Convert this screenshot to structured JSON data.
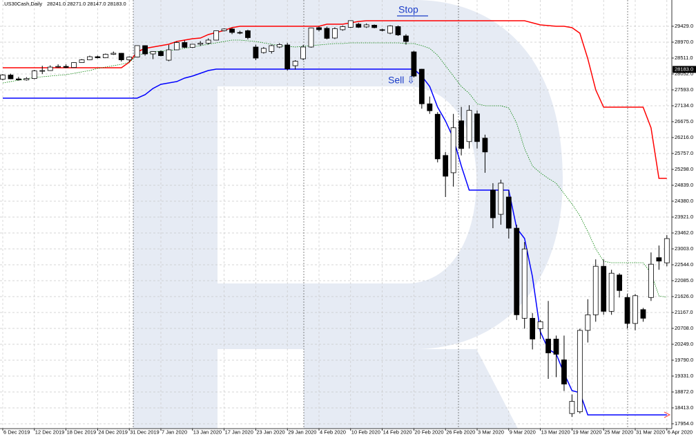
{
  "chart_data": {
    "type": "candlestick",
    "title": ".US30Cash,Daily",
    "ohlc_info": "28241.0 28271.0 28147.0 28183.0",
    "annotations": [
      "Stop",
      "Sell ⇩"
    ],
    "price_marker": {
      "value": 28183,
      "label": "28183.0"
    },
    "categories": [
      "6 Dec 2019",
      null,
      null,
      null,
      "12 Dec 2019",
      null,
      null,
      null,
      "18 Dec 2019",
      null,
      null,
      null,
      "24 Dec 2019",
      null,
      null,
      null,
      "31 Dec 2019",
      null,
      null,
      null,
      "7 Jan 2020",
      null,
      null,
      null,
      "13 Jan 2020",
      null,
      null,
      null,
      "17 Jan 2020",
      null,
      null,
      null,
      "23 Jan 2020",
      null,
      null,
      null,
      "29 Jan 2020",
      null,
      null,
      null,
      "4 Feb 2020",
      null,
      null,
      null,
      "10 Feb 2020",
      null,
      null,
      null,
      "14 Feb 2020",
      null,
      null,
      null,
      "20 Feb 2020",
      null,
      null,
      null,
      "26 Feb 2020",
      null,
      null,
      null,
      "3 Mar 2020",
      null,
      null,
      null,
      "9 Mar 2020",
      null,
      null,
      null,
      "13 Mar 2020",
      null,
      null,
      null,
      "19 Mar 2020",
      null,
      null,
      null,
      "25 Mar 2020",
      null,
      null,
      null,
      "31 Mar 2020",
      null,
      null,
      null,
      "6 Apr 2020"
    ],
    "open": [
      27900,
      28020,
      27910,
      27880,
      27920,
      28140,
      28150,
      28250,
      28270,
      28240,
      28380,
      28460,
      28550,
      28520,
      28620,
      28650,
      28460,
      28540,
      28870,
      28630,
      28700,
      28450,
      28750,
      28960,
      28820,
      28910,
      28940,
      29030,
      29300,
      29350,
      29250,
      29300,
      28830,
      28670,
      28700,
      28830,
      28890,
      28290,
      28490,
      28830,
      29390,
      29370,
      29090,
      29330,
      29400,
      29490,
      29410,
      29460,
      29330,
      29230,
      29420,
      29150,
      28690,
      28190,
      27190,
      26890,
      25700,
      25200,
      26700,
      26100,
      26900,
      26200,
      24700,
      24000,
      24500,
      23600,
      21000,
      21000,
      20700,
      20400,
      20400,
      19800,
      18250,
      18300,
      20650,
      21100,
      22500,
      21200,
      22250,
      21600,
      20850,
      21250,
      21600,
      22750,
      22600
    ],
    "high": [
      28050,
      28060,
      27970,
      27960,
      28170,
      28290,
      28300,
      28330,
      28330,
      28390,
      28480,
      28580,
      28580,
      28640,
      28700,
      28660,
      28560,
      28880,
      28880,
      28710,
      28730,
      28890,
      28990,
      29020,
      28920,
      29000,
      29080,
      29310,
      29370,
      29380,
      29300,
      29330,
      28900,
      28830,
      28900,
      28940,
      28950,
      28450,
      28890,
      29390,
      29420,
      29420,
      29400,
      29450,
      29600,
      29530,
      29510,
      29480,
      29360,
      29460,
      29450,
      29200,
      28720,
      28200,
      27400,
      26950,
      25800,
      26900,
      27100,
      27150,
      27000,
      26300,
      24900,
      25000,
      24700,
      23700,
      23200,
      21150,
      20950,
      21500,
      20500,
      20500,
      18800,
      20700,
      21550,
      22700,
      22700,
      22400,
      22300,
      21700,
      21700,
      21300,
      22900,
      23100,
      23400
    ],
    "low": [
      27870,
      27900,
      27860,
      27860,
      27900,
      28050,
      28140,
      28230,
      28220,
      28230,
      28370,
      28450,
      28500,
      28510,
      28600,
      28410,
      28390,
      28530,
      28580,
      28480,
      28560,
      28420,
      28740,
      28800,
      28800,
      28860,
      28900,
      29020,
      29280,
      29200,
      29200,
      29050,
      28450,
      28640,
      28640,
      28800,
      28150,
      28180,
      28450,
      28810,
      29280,
      29050,
      29060,
      29300,
      29380,
      29380,
      29380,
      29370,
      29280,
      29200,
      29150,
      28900,
      27950,
      27050,
      26900,
      25500,
      24500,
      24800,
      25700,
      25900,
      25900,
      25200,
      23600,
      23700,
      23300,
      20950,
      20700,
      20100,
      20400,
      19250,
      19300,
      18900,
      18150,
      18250,
      20300,
      20900,
      21100,
      21100,
      21600,
      20700,
      20650,
      20900,
      21500,
      22400,
      22500
    ],
    "close": [
      28020,
      27910,
      27880,
      27920,
      28140,
      28150,
      28250,
      28270,
      28240,
      28380,
      28460,
      28550,
      28520,
      28620,
      28650,
      28460,
      28540,
      28870,
      28630,
      28700,
      28580,
      28750,
      28960,
      28820,
      28910,
      28940,
      29030,
      29300,
      29350,
      29250,
      29230,
      29100,
      28510,
      28790,
      28870,
      28900,
      28200,
      28420,
      28830,
      29380,
      29330,
      29080,
      29360,
      29420,
      29590,
      29400,
      29470,
      29390,
      29310,
      29440,
      29180,
      28990,
      27990,
      27190,
      26990,
      25600,
      25100,
      26500,
      25900,
      27000,
      26100,
      25800,
      23900,
      24900,
      23600,
      21100,
      23000,
      20400,
      20900,
      20000,
      19960,
      19100,
      18600,
      20650,
      21100,
      22500,
      21200,
      22300,
      21800,
      20850,
      21650,
      21000,
      22560,
      22650,
      23300
    ],
    "series": [
      {
        "color": "#ff0000",
        "width": 1.5,
        "dash": false,
        "values": [
          28232,
          28232,
          28232,
          28232,
          28232,
          28232,
          28232,
          28232,
          28232,
          28232,
          28232,
          28232,
          28232,
          28232,
          28232,
          28232,
          28391,
          28690,
          28790,
          28830,
          28870,
          28910,
          28990,
          29030,
          29070,
          29090,
          29190,
          29250,
          29309,
          29389,
          29429,
          29429,
          29429,
          29429,
          29429,
          29429,
          29429,
          29429,
          29429,
          29429,
          29429,
          29489,
          29489,
          29489,
          29529,
          29569,
          29589,
          29589,
          29589,
          29589,
          29589,
          29589,
          29589,
          29589,
          29589,
          29589,
          29589,
          29589,
          29589,
          29589,
          29589,
          29589,
          29589,
          29589,
          29589,
          29589,
          29589,
          29529,
          29469,
          29449,
          29429,
          29429,
          29389,
          29229,
          28491,
          27593,
          27094,
          27094,
          27094,
          27094,
          27094,
          27094,
          26495,
          25038,
          25038
        ]
      },
      {
        "color": "#0000ff",
        "width": 1.5,
        "dash": false,
        "values": [
          27353,
          27353,
          27353,
          27353,
          27353,
          27353,
          27353,
          27353,
          27353,
          27353,
          27353,
          27353,
          27353,
          27353,
          27353,
          27353,
          27353,
          27353,
          27453,
          27633,
          27753,
          27793,
          27832,
          27932,
          27992,
          28072,
          28152,
          28192,
          28192,
          28192,
          28192,
          28192,
          28192,
          28192,
          28192,
          28192,
          28192,
          28192,
          28192,
          28192,
          28192,
          28192,
          28192,
          28192,
          28192,
          28192,
          28192,
          28192,
          28192,
          28192,
          28192,
          28192,
          28192,
          27992,
          27693,
          27094,
          26695,
          26196,
          25398,
          24699,
          24699,
          24699,
          24699,
          24699,
          24699,
          23602,
          23302,
          22204,
          20608,
          20109,
          19969,
          19410,
          18911,
          18851,
          18212,
          18212,
          18212,
          18212,
          18212,
          18212,
          18212,
          18212,
          18212,
          18212,
          18212
        ]
      },
      {
        "color": "#008000",
        "width": 0.8,
        "dash": true,
        "values": [
          27793,
          27832,
          27872,
          27912,
          27952,
          27972,
          27992,
          28012,
          28032,
          28072,
          28112,
          28152,
          28212,
          28252,
          28292,
          28331,
          28391,
          28591,
          28651,
          28690,
          28710,
          28730,
          28750,
          28790,
          28830,
          28870,
          28910,
          28950,
          28990,
          29030,
          29030,
          29010,
          28990,
          28950,
          28910,
          28870,
          28850,
          28830,
          28850,
          28870,
          28890,
          28910,
          28930,
          28930,
          28950,
          28950,
          28950,
          28950,
          28950,
          28950,
          28950,
          28930,
          28930,
          28870,
          28790,
          28591,
          28292,
          27992,
          27693,
          27493,
          27194,
          27134,
          27134,
          27134,
          27074,
          26635,
          25896,
          25398,
          25198,
          25038,
          24899,
          24599,
          24300,
          23961,
          23502,
          23003,
          22644,
          22604,
          22604,
          22604,
          22604,
          22604,
          22304,
          21645,
          21606
        ]
      }
    ],
    "up_color": "#ffffff",
    "down_color": "#000000",
    "ylim": [
      17814,
      30187
    ],
    "yticks": [
      {
        "value": 29429,
        "label": "29429.0"
      },
      {
        "value": 28970,
        "label": "28970.0"
      },
      {
        "value": 28511,
        "label": "28511.0"
      },
      {
        "value": 28052,
        "label": "28052.0"
      },
      {
        "value": 27593,
        "label": "27593.0"
      },
      {
        "value": 27134,
        "label": "27134.0"
      },
      {
        "value": 26675,
        "label": "26675.0"
      },
      {
        "value": 26216,
        "label": "26216.0"
      },
      {
        "value": 25757,
        "label": "25757.0"
      },
      {
        "value": 25298,
        "label": "25298.0"
      },
      {
        "value": 24839,
        "label": "24839.0"
      },
      {
        "value": 24380,
        "label": "24380.0"
      },
      {
        "value": 23921,
        "label": "23921.0"
      },
      {
        "value": 23462,
        "label": "23462.0"
      },
      {
        "value": 23003,
        "label": "23003.0"
      },
      {
        "value": 22544,
        "label": "22544.0"
      },
      {
        "value": 22085,
        "label": "22085.0"
      },
      {
        "value": 21626,
        "label": "21626.0"
      },
      {
        "value": 21167,
        "label": "21167.0"
      },
      {
        "value": 20708,
        "label": "20708.0"
      },
      {
        "value": 20249,
        "label": "20249.0"
      },
      {
        "value": 19790,
        "label": "19790.0"
      },
      {
        "value": 19331,
        "label": "19331.0"
      },
      {
        "value": 18872,
        "label": "18872.0"
      },
      {
        "value": 18413,
        "label": "18413.0"
      },
      {
        "value": 17954,
        "label": "17954.0"
      }
    ],
    "grid": true
  }
}
